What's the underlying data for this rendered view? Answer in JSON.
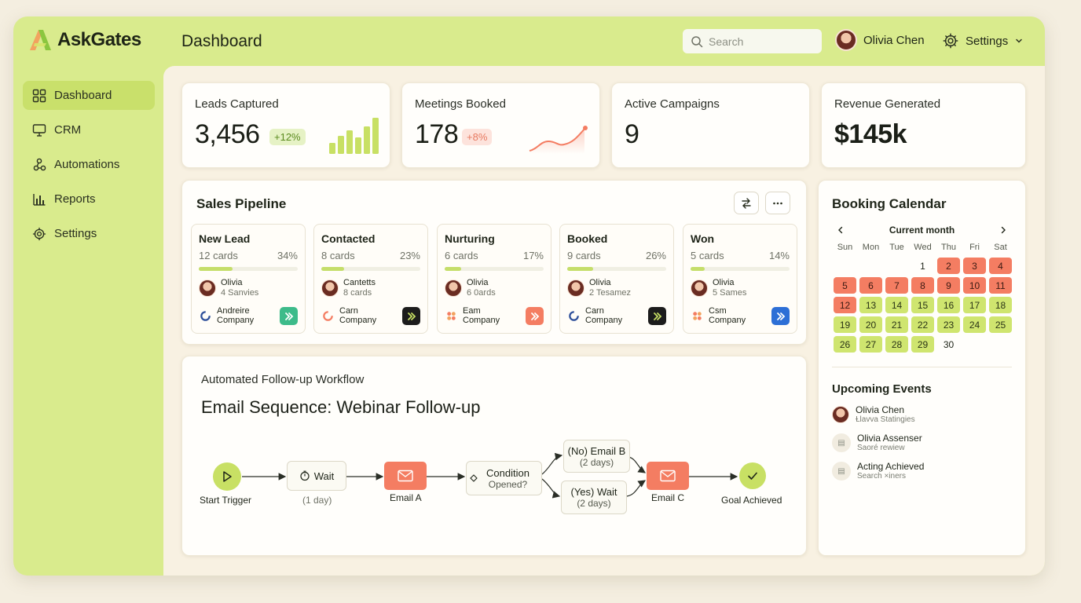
{
  "app": {
    "name": "AskGates",
    "page_title": "Dashboard"
  },
  "header": {
    "search_placeholder": "Search",
    "user_name": "Olivia Chen",
    "settings_label": "Settings"
  },
  "sidebar": {
    "items": [
      {
        "label": "Dashboard",
        "icon": "grid-icon",
        "active": true
      },
      {
        "label": "CRM",
        "icon": "monitor-icon"
      },
      {
        "label": "Automations",
        "icon": "nodes-icon"
      },
      {
        "label": "Reports",
        "icon": "bar-chart-icon"
      },
      {
        "label": "Settings",
        "icon": "gear-icon"
      }
    ]
  },
  "stats": {
    "leads": {
      "label": "Leads Captured",
      "value": "3,456",
      "change": "+12%",
      "spark": [
        0.3,
        0.5,
        0.65,
        0.45,
        0.75,
        1.0
      ]
    },
    "meetings": {
      "label": "Meetings Booked",
      "value": "178",
      "change": "+8%"
    },
    "campaigns": {
      "label": "Active Campaigns",
      "value": "9"
    },
    "revenue": {
      "label": "Revenue Generated",
      "value": "$145k"
    }
  },
  "pipeline": {
    "title": "Sales Pipeline",
    "stages": [
      {
        "name": "New Lead",
        "count": "12 cards",
        "pct": "34%",
        "progress": 0.34,
        "person": "Olivia",
        "person_sub": "4 Sanvies",
        "company": "Andreire",
        "company_sub": "Company",
        "company_icon": "ring-icon",
        "tile_color": "#3dbb8a"
      },
      {
        "name": "Contacted",
        "count": "8 cards",
        "pct": "23%",
        "progress": 0.23,
        "person": "Cantetts",
        "person_sub": "8 cards",
        "company": "Carn",
        "company_sub": "Company",
        "company_icon": "ring-icon",
        "tile_color": "#1c1c1c"
      },
      {
        "name": "Nurturing",
        "count": "6 cards",
        "pct": "17%",
        "progress": 0.17,
        "person": "Olivia",
        "person_sub": "6 0ards",
        "company": "Eam",
        "company_sub": "Company",
        "company_icon": "petals-icon",
        "tile_color": "#f47d62"
      },
      {
        "name": "Booked",
        "count": "9 cards",
        "pct": "26%",
        "progress": 0.26,
        "person": "Olivia",
        "person_sub": "2 Tesamez",
        "company": "Carn",
        "company_sub": "Company",
        "company_icon": "ring-icon",
        "tile_color": "#1c1c1c"
      },
      {
        "name": "Won",
        "count": "5 cards",
        "pct": "14%",
        "progress": 0.14,
        "person": "Olivia",
        "person_sub": "5 Sames",
        "company": "Csm",
        "company_sub": "Company",
        "company_icon": "petals-icon",
        "tile_color": "#2d6fd6"
      }
    ]
  },
  "workflow": {
    "subtitle": "Automated Follow-up Workflow",
    "title": "Email Sequence: Webinar Follow-up",
    "nodes": {
      "start": "Start Trigger",
      "wait": "Wait",
      "wait_sub": "(1 day)",
      "email_a": "Email A",
      "condition": "Condition",
      "condition_sub": "Opened?",
      "no_branch": "(No) Email B",
      "no_branch_sub": "(2 days)",
      "yes_branch": "(Yes) Wait",
      "yes_branch_sub": "(2 days)",
      "email_c": "Email C",
      "goal": "Goal Achieved"
    }
  },
  "calendar": {
    "title": "Booking Calendar",
    "month_label": "Current month",
    "weekdays": [
      "Sun",
      "Mon",
      "Tue",
      "Wed",
      "Thu",
      "Fri",
      "Sat"
    ],
    "start_offset": 3,
    "days_in_month": 30,
    "booked": [
      2,
      3,
      4,
      5,
      6,
      7,
      8,
      9,
      10,
      11,
      12
    ],
    "available": [
      13,
      14,
      15,
      16,
      17,
      18,
      19,
      20,
      21,
      22,
      23,
      24,
      25,
      26,
      27,
      28,
      29
    ]
  },
  "events": {
    "title": "Upcoming Events",
    "items": [
      {
        "name": "Olivia Chen",
        "sub": "Ɫlavva Statingies",
        "avatar": true
      },
      {
        "name": "Olivia Assenser",
        "sub": "Saoré rewiew",
        "avatar": false
      },
      {
        "name": "Acting Achieved",
        "sub": "Search ×iners",
        "avatar": false
      }
    ]
  },
  "colors": {
    "accent_lime": "#d9eb8d",
    "accent_coral": "#f47d62",
    "background": "#f8f1e2"
  }
}
